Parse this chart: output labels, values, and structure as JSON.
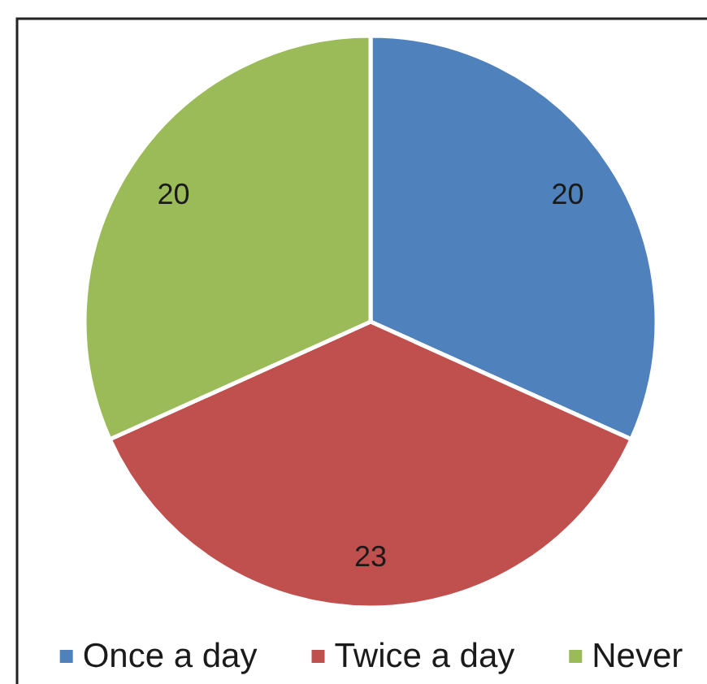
{
  "chart_data": {
    "type": "pie",
    "categories": [
      "Once a day",
      "Twice a day",
      "Never"
    ],
    "values": [
      20,
      23,
      20
    ],
    "colors": [
      "#4f81bd",
      "#c0504d",
      "#9bbb59"
    ],
    "data_labels": true,
    "legend": "bottom"
  }
}
